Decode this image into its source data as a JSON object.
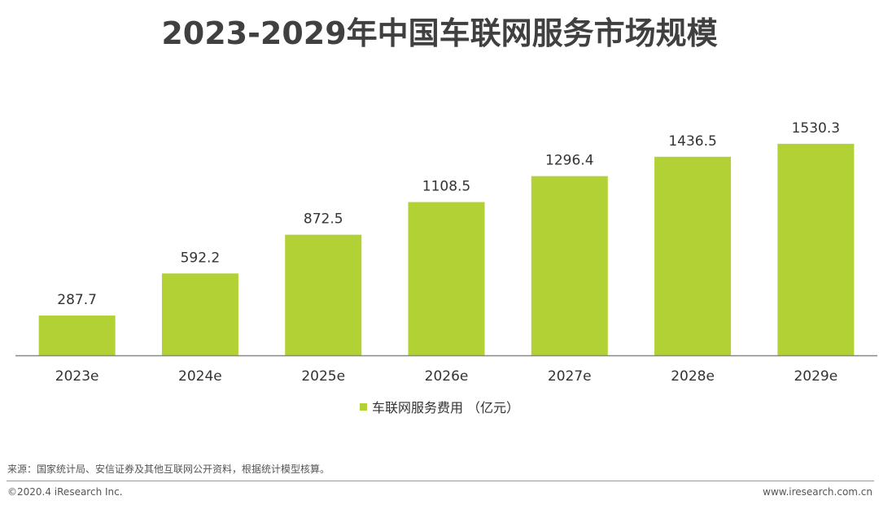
{
  "chart_data": {
    "type": "bar",
    "title": "2023-2029年中国车联网服务市场规模",
    "categories": [
      "2023e",
      "2024e",
      "2025e",
      "2026e",
      "2027e",
      "2028e",
      "2029e"
    ],
    "series": [
      {
        "name": "车联网服务费用 （亿元）",
        "values": [
          287.7,
          592.2,
          872.5,
          1108.5,
          1296.4,
          1436.5,
          1530.3
        ],
        "labels": [
          "287.7",
          "592.2",
          "872.5",
          "1108.5",
          "1296.4",
          "1436.5",
          "1530.3"
        ],
        "color": "#b1d135"
      }
    ],
    "ylim": [
      0,
      1700
    ],
    "xlabel": "",
    "ylabel": "",
    "grid": false,
    "legend_position": "bottom-center"
  },
  "footer": {
    "source": "来源：国家统计局、安信证券及其他互联网公开资料，根据统计模型核算。",
    "copyright": "©2020.4 iResearch Inc.",
    "website": "www.iresearch.com.cn"
  }
}
